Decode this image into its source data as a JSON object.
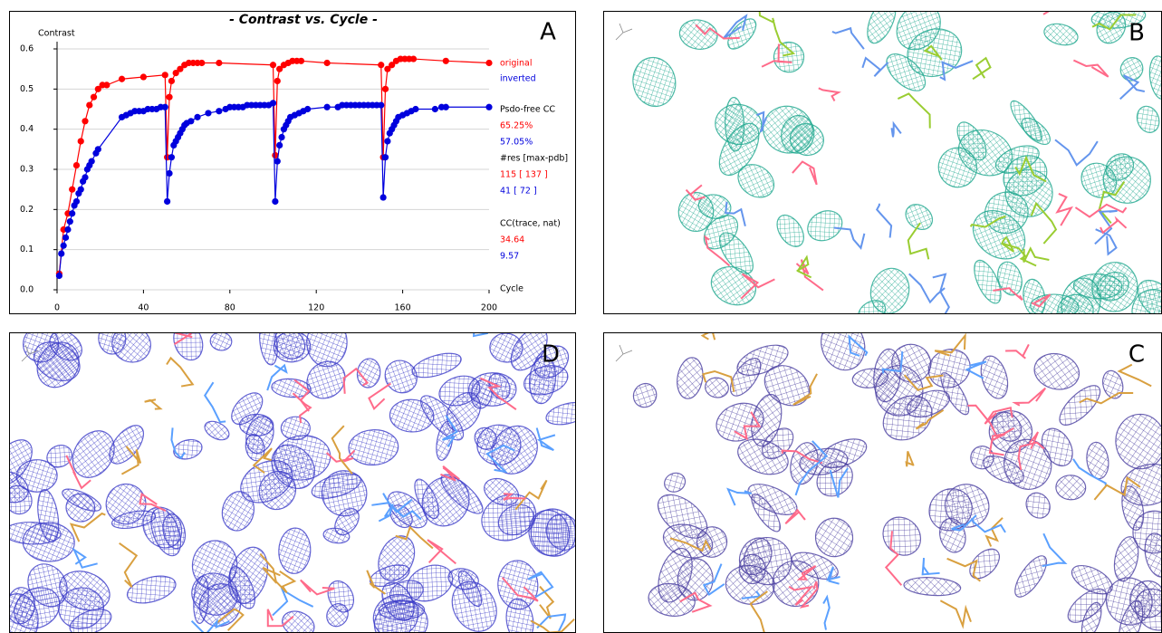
{
  "chart_data": {
    "type": "line",
    "title": "- Contrast vs. Cycle -",
    "panel_label": "A",
    "y_label": "Contrast",
    "x_label": "Cycle",
    "xlim": [
      0,
      200
    ],
    "xticks": [
      0,
      40,
      80,
      120,
      160,
      200
    ],
    "ylim": [
      0,
      0.6
    ],
    "yticks": [
      {
        "value": 0,
        "label": "0.0"
      },
      0.1,
      0.2,
      0.3,
      0.4,
      0.5,
      0.6
    ],
    "grid": true,
    "series": [
      {
        "name": "original",
        "color": "#ff0000",
        "x": [
          1,
          3,
          5,
          7,
          9,
          11,
          13,
          15,
          17,
          19,
          21,
          23,
          30,
          40,
          50,
          51,
          52,
          53,
          55,
          57,
          59,
          61,
          63,
          65,
          67,
          75,
          100,
          101,
          102,
          103,
          105,
          107,
          109,
          111,
          113,
          125,
          150,
          151,
          152,
          153,
          155,
          157,
          159,
          161,
          163,
          165,
          180,
          200
        ],
        "values": [
          0.04,
          0.15,
          0.19,
          0.25,
          0.31,
          0.37,
          0.42,
          0.46,
          0.48,
          0.5,
          0.51,
          0.51,
          0.525,
          0.53,
          0.535,
          0.33,
          0.48,
          0.52,
          0.54,
          0.55,
          0.56,
          0.565,
          0.565,
          0.565,
          0.565,
          0.565,
          0.56,
          0.335,
          0.52,
          0.55,
          0.56,
          0.565,
          0.57,
          0.57,
          0.57,
          0.565,
          0.56,
          0.33,
          0.5,
          0.55,
          0.56,
          0.57,
          0.575,
          0.575,
          0.575,
          0.575,
          0.57,
          0.565
        ]
      },
      {
        "name": "inverted",
        "color": "#0000dd",
        "x": [
          1,
          2,
          3,
          4,
          5,
          6,
          7,
          8,
          9,
          10,
          11,
          12,
          13,
          14,
          15,
          16,
          18,
          19,
          30,
          32,
          34,
          36,
          38,
          40,
          42,
          44,
          46,
          48,
          50,
          51,
          52,
          53,
          54,
          55,
          56,
          57,
          58,
          59,
          60,
          62,
          65,
          70,
          75,
          78,
          80,
          82,
          84,
          86,
          88,
          90,
          92,
          94,
          96,
          98,
          100,
          101,
          102,
          103,
          104,
          105,
          106,
          107,
          108,
          110,
          112,
          114,
          116,
          125,
          130,
          132,
          134,
          136,
          138,
          140,
          142,
          144,
          146,
          148,
          150,
          151,
          152,
          153,
          154,
          155,
          156,
          157,
          158,
          160,
          162,
          164,
          166,
          175,
          178,
          180,
          200
        ],
        "values": [
          0.035,
          0.09,
          0.11,
          0.13,
          0.15,
          0.17,
          0.19,
          0.21,
          0.22,
          0.24,
          0.25,
          0.27,
          0.28,
          0.3,
          0.31,
          0.32,
          0.34,
          0.35,
          0.43,
          0.435,
          0.44,
          0.445,
          0.445,
          0.445,
          0.45,
          0.45,
          0.45,
          0.455,
          0.455,
          0.22,
          0.29,
          0.33,
          0.36,
          0.37,
          0.38,
          0.39,
          0.4,
          0.41,
          0.415,
          0.42,
          0.43,
          0.44,
          0.445,
          0.45,
          0.455,
          0.455,
          0.455,
          0.455,
          0.46,
          0.46,
          0.46,
          0.46,
          0.46,
          0.46,
          0.465,
          0.22,
          0.32,
          0.36,
          0.38,
          0.4,
          0.41,
          0.42,
          0.43,
          0.435,
          0.44,
          0.445,
          0.45,
          0.455,
          0.455,
          0.46,
          0.46,
          0.46,
          0.46,
          0.46,
          0.46,
          0.46,
          0.46,
          0.46,
          0.46,
          0.23,
          0.33,
          0.37,
          0.39,
          0.4,
          0.41,
          0.42,
          0.43,
          0.435,
          0.44,
          0.445,
          0.45,
          0.45,
          0.455,
          0.455,
          0.455
        ]
      }
    ],
    "stats": [
      {
        "text": "Psdo-free CC",
        "color": "#000000"
      },
      {
        "text": "65.25%",
        "color": "#ff0000"
      },
      {
        "text": "57.05%",
        "color": "#0000dd"
      },
      {
        "text": "#res [max-pdb]",
        "color": "#000000"
      },
      {
        "text": "115  [ 137 ]",
        "color": "#ff0000"
      },
      {
        "text": "41  [ 72 ]",
        "color": "#0000dd"
      },
      {
        "text": "CC(trace, nat)",
        "color": "#000000"
      },
      {
        "text": "34.64",
        "color": "#ff0000"
      },
      {
        "text": "9.57",
        "color": "#0000dd"
      }
    ]
  },
  "panels": [
    {
      "label": "B"
    },
    {
      "label": "D"
    },
    {
      "label": "C"
    }
  ]
}
